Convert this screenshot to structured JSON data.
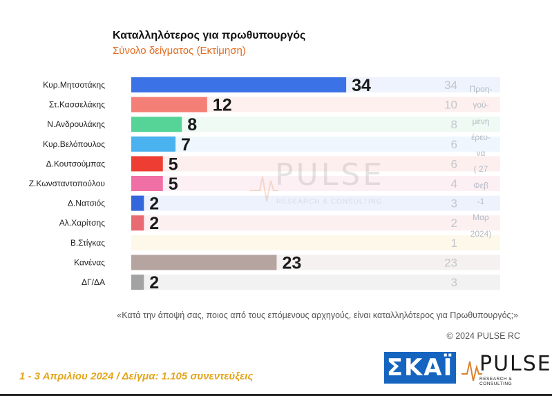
{
  "header": {
    "title": "Καταλληλότερος για πρωθυπουργός",
    "subtitle": "Σύνολο δείγματος   (Εκτίμηση)"
  },
  "watermark": {
    "brand": "PULSE",
    "tagline": "RESEARCH & CONSULTING"
  },
  "previous_note": {
    "lines": [
      "Προη-",
      "γού-",
      "μενη",
      "έρευ-",
      "να",
      "( 27",
      "Φεβ",
      "-1",
      "Μαρ",
      "2024)"
    ]
  },
  "chart_data": {
    "type": "bar",
    "orientation": "horizontal",
    "title": "Καταλληλότερος για πρωθυπουργός",
    "subtitle": "Σύνολο δείγματος   (Εκτίμηση)",
    "categories": [
      "Κυρ.Μητσοτάκης",
      "Στ.Κασσελάκης",
      "Ν.Ανδρουλάκης",
      "Κυρ.Βελόπουλος",
      "Δ.Κουτσούμπας",
      "Ζ.Κωνσταντοπούλου",
      "Δ.Νατσιός",
      "Αλ.Χαρίτσης",
      "Β.Στίγκας",
      "Κανένας",
      "ΔΓ/ΔΑ"
    ],
    "series": [
      {
        "values": [
          34,
          12,
          8,
          7,
          5,
          5,
          2,
          2,
          null,
          23,
          2
        ],
        "labels": [
          "34",
          "12",
          "8",
          "7",
          "5",
          "5",
          "2",
          "2",
          "",
          "23",
          "2"
        ]
      },
      {
        "values": [
          34,
          10,
          8,
          6,
          6,
          4,
          3,
          2,
          1,
          23,
          3
        ],
        "labels": [
          "34",
          "10",
          "8",
          "6",
          "6",
          "4",
          "3",
          "2",
          "1",
          "23",
          "3"
        ]
      }
    ],
    "colors": [
      "#3b73e6",
      "#f47f76",
      "#56d497",
      "#4ab2ee",
      "#ee3d33",
      "#f06fa4",
      "#3567dc",
      "#e86a72",
      "#cccccc",
      "#b5a49f",
      "#a3a3a3"
    ],
    "row_tints": [
      "#eef3fd",
      "#fdf0ef",
      "#eefaf3",
      "#eef7fd",
      "#fdefee",
      "#fdf0f5",
      "#eef2fd",
      "#fdf0f1",
      "#fdf8ea",
      "#f4f1f0",
      "#f2f2f2"
    ],
    "xlim": [
      0,
      38
    ],
    "grid": false,
    "legend": "none"
  },
  "question": "«Κατά την άποψή σας, ποιος από τους επόμενους αρχηγούς, είναι καταλληλότερος για Πρωθυπουργός;»",
  "copyright": "© 2024 PULSE RC",
  "footer": {
    "info": "1 - 3  Απριλίου 2024  /  Δείγμα:  1.105 συνεντεύξεις"
  },
  "logos": {
    "skai": "ΣΚΑΪ",
    "pulse": "PULSE",
    "pulse_tagline": "RESEARCH & CONSULTING"
  }
}
